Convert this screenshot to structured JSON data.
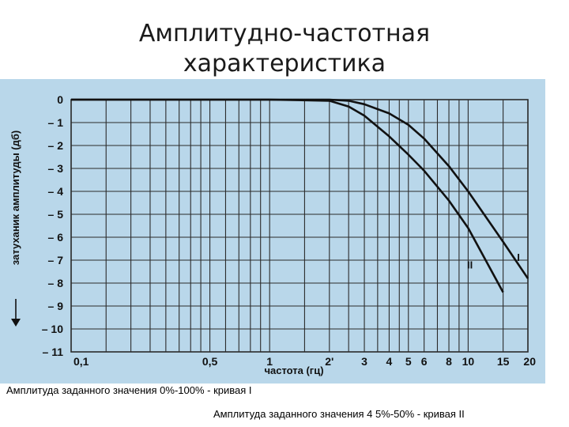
{
  "title_line1": "Амплитудно-частотная",
  "title_line2": "характеристика",
  "captions": [
    "Амплитуда заданного значения 0%-100%   - кривая I",
    "Амплитуда заданного значения 4 5%-50%  - кривая II"
  ],
  "colors": {
    "background": "#b9d7ea",
    "grid": "#2b2b2b",
    "curve": "#111111"
  },
  "chart_data": {
    "type": "line",
    "x_scale": "log",
    "xlim": [
      0.1,
      20
    ],
    "ylim": [
      -11,
      0
    ],
    "xlabel": "частота  (гц)",
    "ylabel": "затуханик амплитуды (дб)",
    "y_ticks": [
      {
        "value": 0,
        "label": "0"
      },
      {
        "value": -1,
        "label": "– 1"
      },
      {
        "value": -2,
        "label": "– 2"
      },
      {
        "value": -3,
        "label": "– 3"
      },
      {
        "value": -4,
        "label": "– 4"
      },
      {
        "value": -5,
        "label": "– 5"
      },
      {
        "value": -6,
        "label": "– 6"
      },
      {
        "value": -7,
        "label": "– 7"
      },
      {
        "value": -8,
        "label": "– 8"
      },
      {
        "value": -9,
        "label": "– 9"
      },
      {
        "value": -10,
        "label": "– 10"
      },
      {
        "value": -11,
        "label": "– 11"
      }
    ],
    "x_ticks": [
      {
        "value": 0.1,
        "label": "0,1"
      },
      {
        "value": 0.5,
        "label": "0,5"
      },
      {
        "value": 1,
        "label": "1"
      },
      {
        "value": 2,
        "label": "2'"
      },
      {
        "value": 3,
        "label": "3"
      },
      {
        "value": 4,
        "label": "4"
      },
      {
        "value": 5,
        "label": "5"
      },
      {
        "value": 6,
        "label": "6"
      },
      {
        "value": 8,
        "label": "8"
      },
      {
        "value": 10,
        "label": "10"
      },
      {
        "value": 15,
        "label": "15"
      },
      {
        "value": 20,
        "label": "20"
      }
    ],
    "x_grid": [
      0.1,
      0.15,
      0.2,
      0.25,
      0.3,
      0.35,
      0.4,
      0.45,
      0.5,
      0.6,
      0.7,
      0.8,
      0.9,
      1,
      1.5,
      2,
      2.5,
      3,
      3.5,
      4,
      4.5,
      5,
      6,
      7,
      8,
      9,
      10,
      15,
      20
    ],
    "series": [
      {
        "name": "I",
        "values": [
          {
            "x": 0.1,
            "y": 0
          },
          {
            "x": 1,
            "y": 0
          },
          {
            "x": 2,
            "y": 0
          },
          {
            "x": 2.5,
            "y": -0.05
          },
          {
            "x": 3,
            "y": -0.2
          },
          {
            "x": 4,
            "y": -0.6
          },
          {
            "x": 5,
            "y": -1.1
          },
          {
            "x": 6,
            "y": -1.7
          },
          {
            "x": 8,
            "y": -2.9
          },
          {
            "x": 10,
            "y": -4.0
          },
          {
            "x": 15,
            "y": -6.2
          },
          {
            "x": 20,
            "y": -7.8
          }
        ]
      },
      {
        "name": "II",
        "values": [
          {
            "x": 0.1,
            "y": 0
          },
          {
            "x": 1,
            "y": 0
          },
          {
            "x": 2,
            "y": -0.05
          },
          {
            "x": 2.5,
            "y": -0.3
          },
          {
            "x": 3,
            "y": -0.7
          },
          {
            "x": 4,
            "y": -1.6
          },
          {
            "x": 5,
            "y": -2.4
          },
          {
            "x": 6,
            "y": -3.1
          },
          {
            "x": 8,
            "y": -4.4
          },
          {
            "x": 10,
            "y": -5.6
          },
          {
            "x": 15,
            "y": -8.4
          }
        ]
      }
    ]
  }
}
